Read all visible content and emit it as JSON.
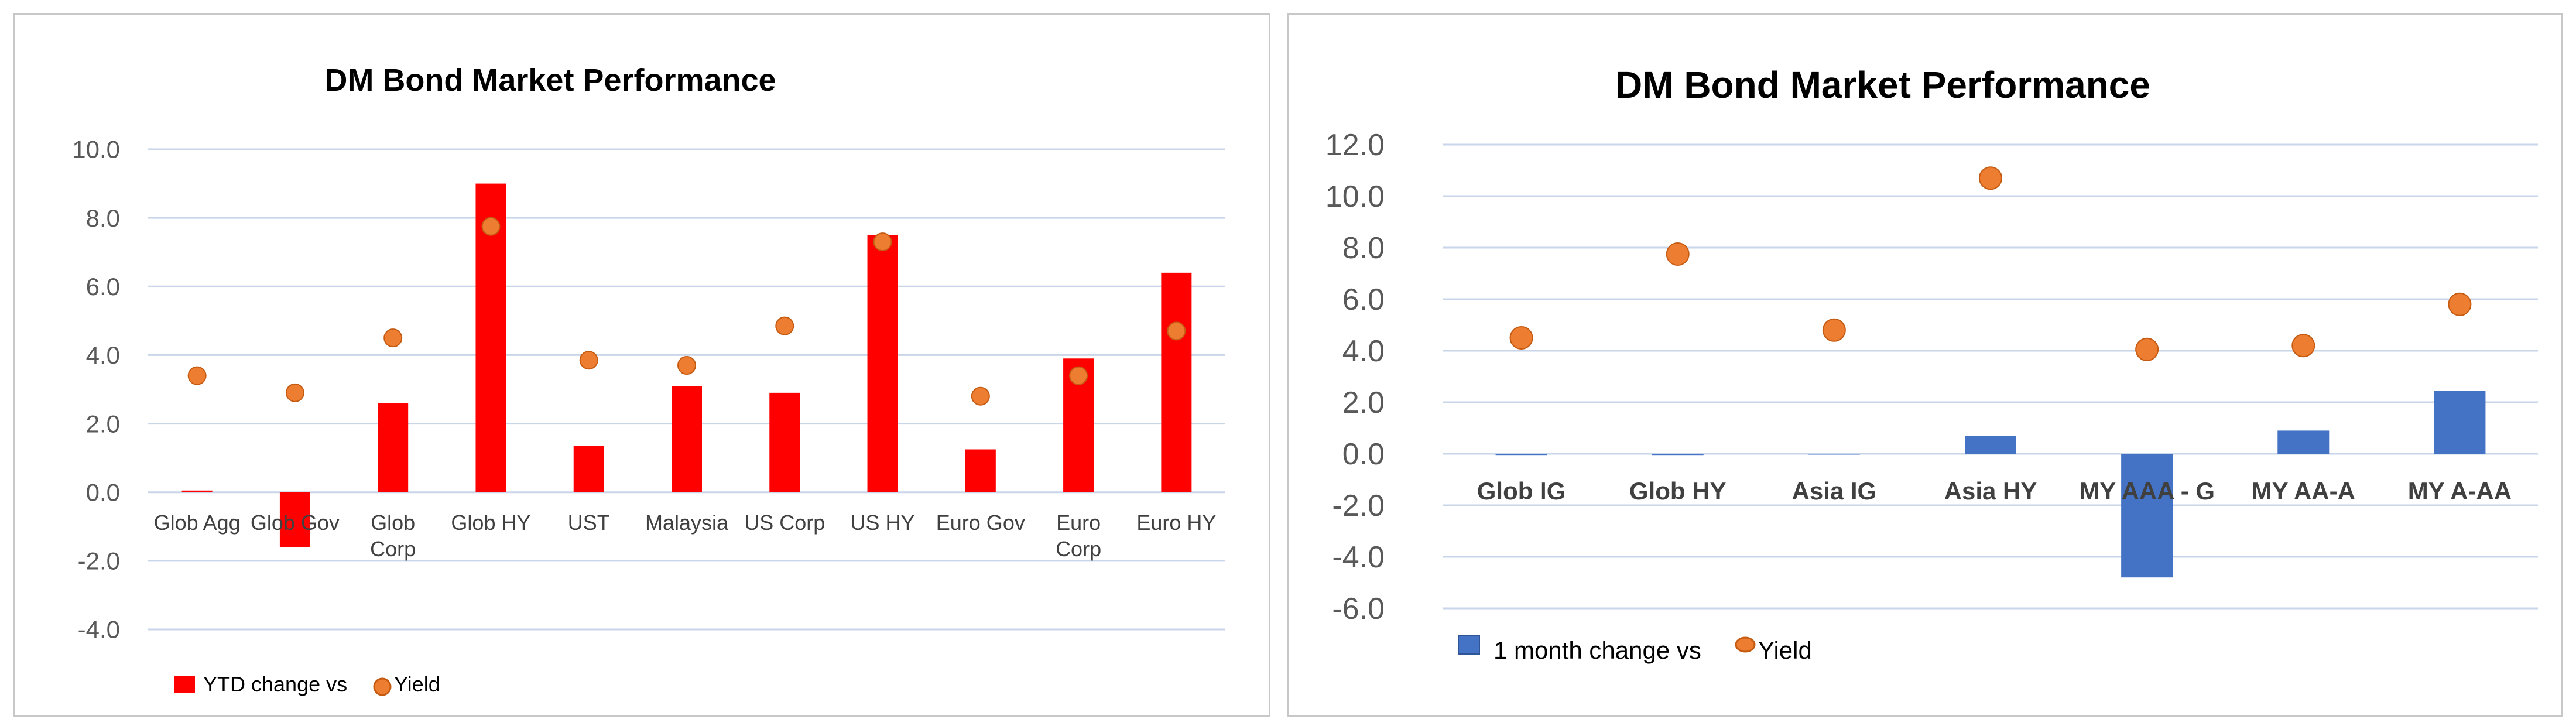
{
  "chart_data": [
    {
      "type": "bar",
      "title": "DM Bond Market Performance",
      "categories": [
        "Glob Agg",
        "Glob Gov",
        "Glob Corp",
        "Glob HY",
        "UST",
        "Malaysia",
        "US Corp",
        "US HY",
        "Euro Gov",
        "Euro Corp",
        "Euro HY"
      ],
      "series": [
        {
          "name": "YTD change vs",
          "kind": "bar",
          "color": "#ff0000",
          "values": [
            0.05,
            -1.6,
            2.6,
            9.0,
            1.35,
            3.1,
            2.9,
            7.5,
            1.25,
            3.9,
            6.4
          ]
        },
        {
          "name": "Yield",
          "kind": "marker",
          "color": "#ed7d31",
          "values": [
            3.4,
            2.9,
            4.5,
            7.75,
            3.85,
            3.7,
            4.85,
            7.3,
            2.8,
            3.4,
            4.7
          ]
        }
      ],
      "yticks": [
        "10.0",
        "8.0",
        "6.0",
        "4.0",
        "2.0",
        "0.0",
        "-2.0",
        "-4.0"
      ],
      "ylim": [
        -4.0,
        10.0
      ],
      "grid": true,
      "legend_position": "bottom-left"
    },
    {
      "type": "bar",
      "title": "DM Bond Market Performance",
      "categories": [
        "Glob IG",
        "Glob HY",
        "Asia IG",
        "Asia HY",
        "MY AAA - G",
        "MY AA-A",
        "MY A-AA"
      ],
      "series": [
        {
          "name": "1 month change vs",
          "kind": "bar",
          "color": "#4472c4",
          "values": [
            -0.05,
            -0.05,
            0.0,
            0.7,
            -4.8,
            0.9,
            2.45
          ]
        },
        {
          "name": "Yield",
          "kind": "marker",
          "color": "#ed7d31",
          "values": [
            4.5,
            7.75,
            4.8,
            10.7,
            4.05,
            4.2,
            5.8
          ]
        }
      ],
      "yticks": [
        "12.0",
        "10.0",
        "8.0",
        "6.0",
        "4.0",
        "2.0",
        "0.0",
        "-2.0",
        "-4.0",
        "-6.0"
      ],
      "ylim": [
        -6.0,
        12.0
      ],
      "grid": true,
      "legend_position": "bottom-left"
    }
  ]
}
